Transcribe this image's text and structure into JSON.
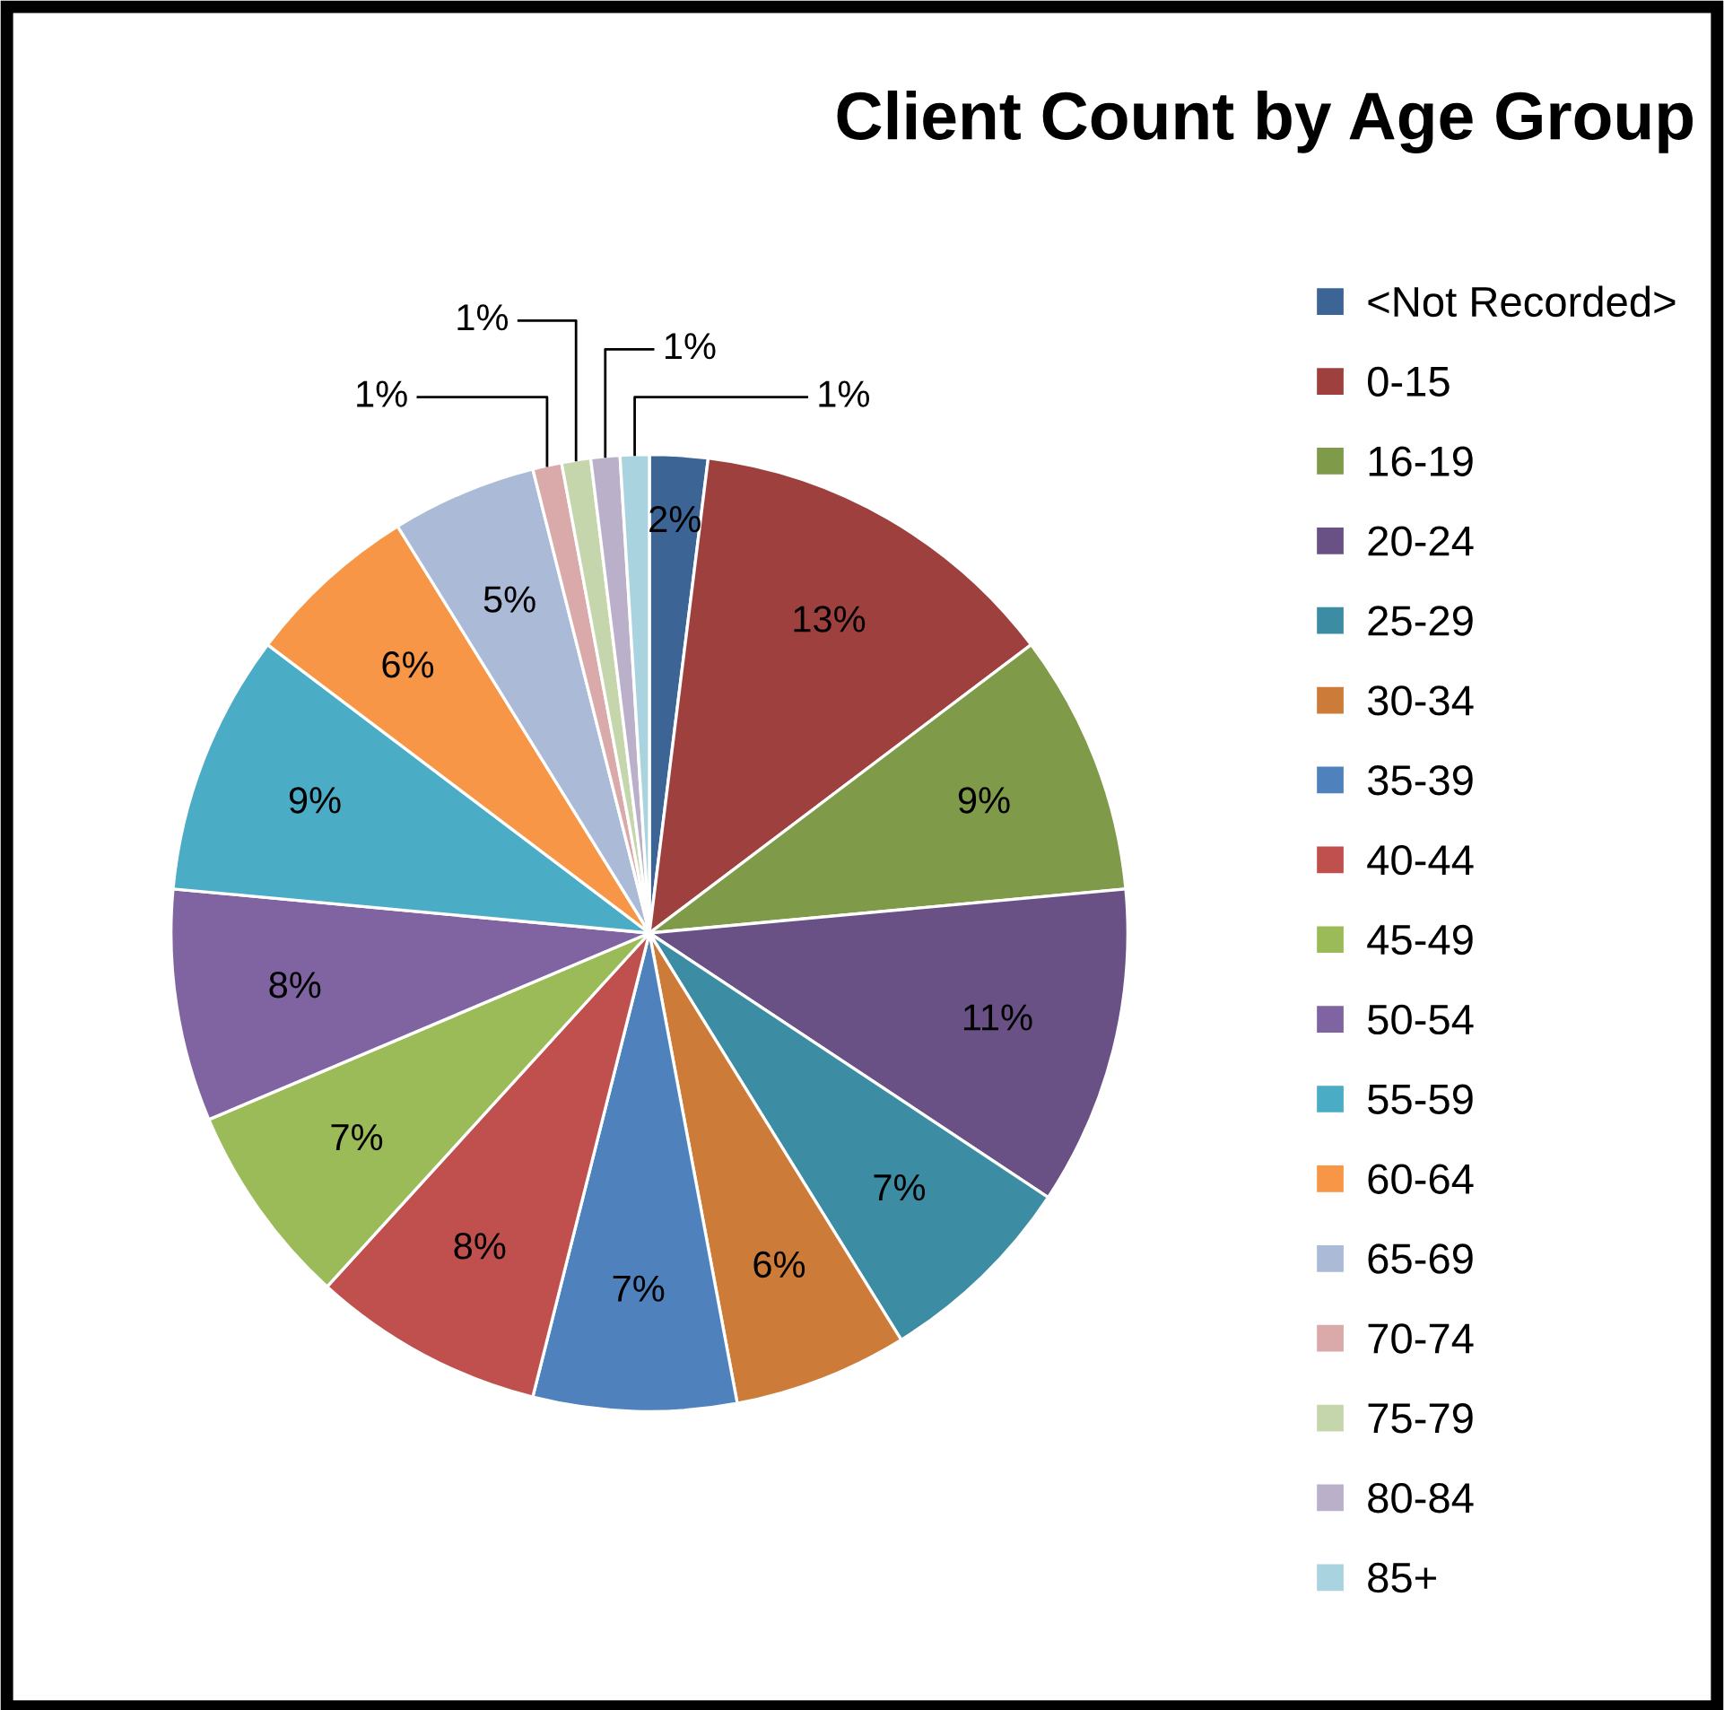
{
  "chart_data": {
    "type": "pie",
    "title": "Client Count by Age Group",
    "categories": [
      "<Not Recorded>",
      "0-15",
      "16-19",
      "20-24",
      "25-29",
      "30-34",
      "35-39",
      "40-44",
      "45-49",
      "50-54",
      "55-59",
      "60-64",
      "65-69",
      "70-74",
      "75-79",
      "80-84",
      "85+"
    ],
    "values": [
      2,
      13,
      9,
      11,
      7,
      6,
      7,
      8,
      7,
      8,
      9,
      6,
      5,
      1,
      1,
      1,
      1
    ],
    "value_labels": [
      "2%",
      "13%",
      "9%",
      "11%",
      "7%",
      "6%",
      "7%",
      "8%",
      "7%",
      "8%",
      "9%",
      "6%",
      "5%",
      "1%",
      "1%",
      "1%",
      "1%"
    ],
    "colors": [
      "#3C6596",
      "#9E413E",
      "#7F9A48",
      "#695185",
      "#3C8DA3",
      "#CC7B38",
      "#4F81BD",
      "#C0504D",
      "#9BBB59",
      "#8064A2",
      "#4BACC6",
      "#F79646",
      "#AABAD7",
      "#D9AAA9",
      "#C6D6AC",
      "#BAB0C9",
      "#A9D3DF"
    ],
    "legend": "right"
  }
}
